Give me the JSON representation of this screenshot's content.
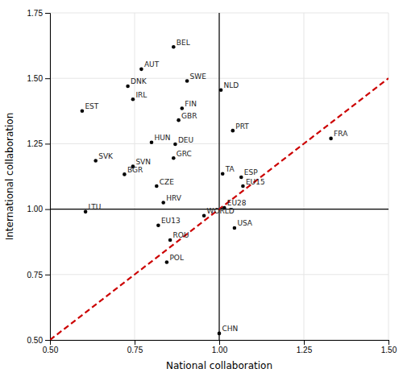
{
  "chart_data": {
    "type": "scatter",
    "xlabel": "National collaboration",
    "ylabel": "International collaboration",
    "labels": [
      "BEL",
      "AUT",
      "DNK",
      "SWE",
      "IRL",
      "NLD",
      "EST",
      "FIN",
      "GBR",
      "PRT",
      "HUN",
      "DEU",
      "GRC",
      "FRA",
      "SVK",
      "SVN",
      "BGR",
      "TA",
      "ESP",
      "EU15",
      "CZE",
      "HRV",
      "EU28",
      "LTU",
      "WORLD",
      "EU13",
      "USA",
      "ROU",
      "POL",
      "CHN"
    ],
    "x": [
      0.865,
      0.77,
      0.73,
      0.905,
      0.745,
      1.005,
      0.595,
      0.89,
      0.88,
      1.04,
      0.8,
      0.87,
      0.865,
      1.33,
      0.635,
      0.745,
      0.72,
      1.01,
      1.065,
      1.07,
      0.815,
      0.835,
      1.015,
      0.605,
      0.955,
      0.82,
      1.045,
      0.855,
      0.845,
      1.0
    ],
    "values": [
      1.62,
      1.535,
      1.47,
      1.49,
      1.42,
      1.455,
      1.375,
      1.385,
      1.34,
      1.3,
      1.255,
      1.248,
      1.195,
      1.27,
      1.185,
      1.163,
      1.133,
      1.135,
      1.122,
      1.088,
      1.088,
      1.025,
      1.005,
      0.99,
      0.975,
      0.938,
      0.928,
      0.882,
      0.797,
      0.525
    ],
    "color": "#000000",
    "xlim": [
      0.5,
      1.5
    ],
    "ylim": [
      0.5,
      1.75
    ],
    "xticks": [
      {
        "value": 0.5,
        "label": "0.50"
      },
      {
        "value": 0.75,
        "label": "0.75"
      },
      {
        "value": 1.0,
        "label": "1.00"
      },
      {
        "value": 1.25,
        "label": "1.25"
      },
      {
        "value": 1.5,
        "label": "1.50"
      }
    ],
    "yticks": [
      {
        "value": 0.5,
        "label": "0.50"
      },
      {
        "value": 0.75,
        "label": "0.75"
      },
      {
        "value": 1.0,
        "label": "1.00"
      },
      {
        "value": 1.25,
        "label": "1.25"
      },
      {
        "value": 1.5,
        "label": "1.50"
      },
      {
        "value": 1.75,
        "label": "1.75"
      }
    ],
    "grid": true,
    "reference_lines": [
      {
        "axis": "x",
        "value": 1.0,
        "color": "#000000"
      },
      {
        "axis": "y",
        "value": 1.0,
        "color": "#000000"
      }
    ],
    "diagonal": {
      "x": [
        0.5,
        1.5
      ],
      "values": [
        0.5,
        1.5
      ],
      "color": "#cc0000",
      "line_style": "dashed"
    }
  }
}
